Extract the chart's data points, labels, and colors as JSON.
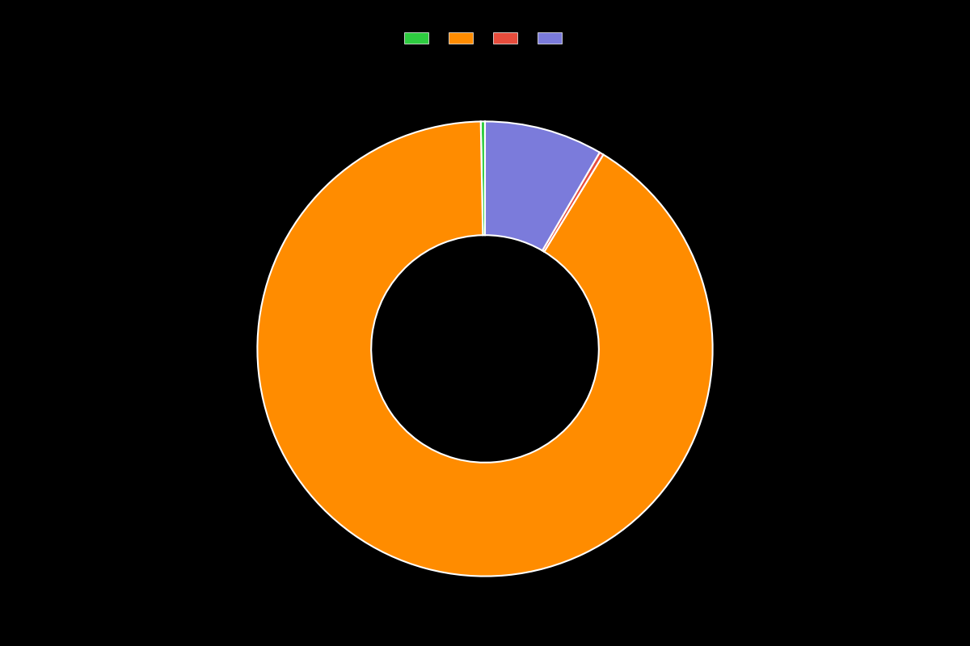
{
  "values": [
    0.3,
    91.0,
    0.3,
    8.4
  ],
  "colors": [
    "#2ecc40",
    "#ff8c00",
    "#e74c3c",
    "#7b7bdb"
  ],
  "legend_labels": [
    "",
    "",
    "",
    ""
  ],
  "background_color": "#000000",
  "wedge_edge_color": "#ffffff",
  "wedge_linewidth": 1.5,
  "donut_width": 0.5,
  "startangle": 90,
  "figsize": [
    12.0,
    8.0
  ],
  "dpi": 100
}
